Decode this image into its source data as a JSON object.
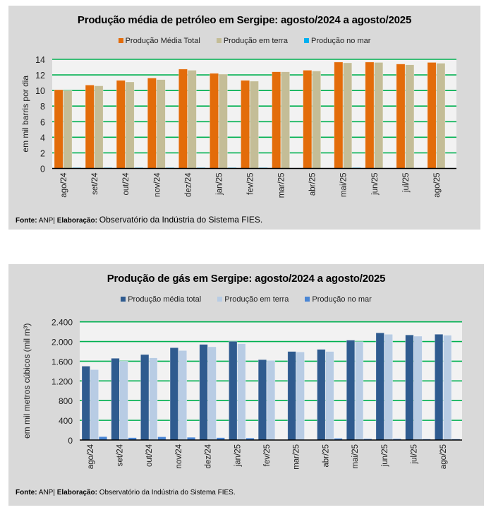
{
  "chart_data": [
    {
      "type": "bar",
      "title": "Produção média de petróleo em Sergipe: agosto/2024 a agosto/2025",
      "xlabel": "",
      "ylabel": "em mil barris por dia",
      "ylim": [
        0,
        14
      ],
      "yticks": [
        0,
        2,
        4,
        6,
        8,
        10,
        12,
        14
      ],
      "ytick_labels": [
        "0",
        "2",
        "4",
        "6",
        "8",
        "10",
        "12",
        "14"
      ],
      "grid": true,
      "legend_position": "top-center",
      "categories": [
        "ago/24",
        "set/24",
        "out/24",
        "nov/24",
        "dez/24",
        "jan/25",
        "fev/25",
        "mar/25",
        "abr/25",
        "mai/25",
        "jun/25",
        "jul/25",
        "ago/25"
      ],
      "series": [
        {
          "name": "Produção Média Total",
          "color": "#e36c0a",
          "values": [
            10.1,
            10.7,
            11.3,
            11.6,
            12.75,
            12.2,
            11.3,
            12.4,
            12.6,
            13.65,
            13.65,
            13.4,
            13.6
          ]
        },
        {
          "name": "Produção em terra",
          "color": "#c4bd97",
          "values": [
            10.0,
            10.6,
            11.1,
            11.4,
            12.6,
            12.1,
            11.2,
            12.4,
            12.5,
            13.55,
            13.6,
            13.3,
            13.5
          ]
        },
        {
          "name": "Produção no mar",
          "color": "#00b0f0",
          "values": [
            0.1,
            0.1,
            0.1,
            0.1,
            0.1,
            0.1,
            0.1,
            0.0,
            0.0,
            0.1,
            0.05,
            0.05,
            0.05
          ]
        }
      ]
    },
    {
      "type": "bar",
      "title": "Produção de gás em Sergipe: agosto/2024 a agosto/2025",
      "xlabel": "",
      "ylabel": "em mil metros cúbicos (mil m³)",
      "ylim": [
        0,
        2400
      ],
      "yticks": [
        0,
        400,
        800,
        1200,
        1600,
        2000,
        2400
      ],
      "ytick_labels": [
        "0",
        "400",
        "800",
        "1.200",
        "1.600",
        "2.000",
        "2.400"
      ],
      "grid": true,
      "legend_position": "top-center",
      "categories": [
        "ago/24",
        "set/24",
        "out/24",
        "nov/24",
        "dez/24",
        "jan/25",
        "fev/25",
        "mar/25",
        "abr/25",
        "mai/25",
        "jun/25",
        "jul/25",
        "ago/25"
      ],
      "series": [
        {
          "name": "Produção média total",
          "color": "#2f5b8f",
          "values": [
            1500,
            1660,
            1736,
            1875,
            1942,
            2004,
            1632,
            1798,
            1841,
            2028,
            2177,
            2134,
            2148
          ]
        },
        {
          "name": "Produção em terra",
          "color": "#b8cce4",
          "values": [
            1430,
            1603,
            1669,
            1818,
            1894,
            1956,
            1617,
            1789,
            1798,
            1999,
            2148,
            2109,
            2128
          ]
        },
        {
          "name": "Produção no mar",
          "color": "#4a86d4",
          "values": [
            68,
            48,
            65,
            55,
            48,
            40,
            0,
            0,
            35,
            25,
            25,
            20,
            20
          ]
        }
      ]
    }
  ],
  "footers": [
    {
      "source_label": "Fonte:",
      "source": "ANP|",
      "elab_label": "Elaboração:",
      "elab": "Observatório da Indústria do Sistema FIES."
    },
    {
      "source_label": "Fonte:",
      "source": "ANP|",
      "elab_label": "Elaboração:",
      "elab": "Observatório da Indústria do Sistema FIES."
    }
  ],
  "style": {
    "panel_bg": "#d9d9d9",
    "plot_bg": "#f2f2f2",
    "grid_color": "#00b050"
  }
}
